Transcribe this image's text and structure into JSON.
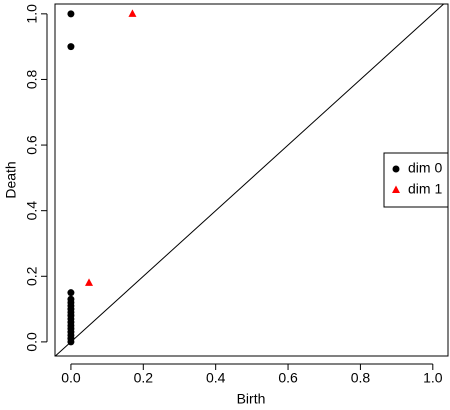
{
  "chart_data": {
    "type": "scatter",
    "x_label": "Birth",
    "y_label": "Death",
    "xlim": [
      -0.044,
      1.042
    ],
    "ylim": [
      -0.043,
      1.03
    ],
    "xticks": [
      {
        "value": 0,
        "label": "0.0"
      },
      {
        "value": 0.2,
        "label": "0.2"
      },
      {
        "value": 0.4,
        "label": "0.4"
      },
      {
        "value": 0.6,
        "label": "0.6"
      },
      {
        "value": 0.8,
        "label": "0.8"
      },
      {
        "value": 1,
        "label": "1.0"
      }
    ],
    "yticks": [
      {
        "value": 0,
        "label": "0.0"
      },
      {
        "value": 0.2,
        "label": "0.2"
      },
      {
        "value": 0.4,
        "label": "0.4"
      },
      {
        "value": 0.6,
        "label": "0.6"
      },
      {
        "value": 0.8,
        "label": "0.8"
      },
      {
        "value": 1,
        "label": "1.0"
      }
    ],
    "legend": "right",
    "series": [
      {
        "name": "dim 0",
        "color": "#000000",
        "marker": "circle",
        "x": [
          0,
          0,
          0,
          0,
          0,
          0,
          0,
          0,
          0,
          0,
          0,
          0,
          0,
          0,
          0,
          0,
          0
        ],
        "values": [
          1.0,
          0.9,
          0.0,
          0.01,
          0.02,
          0.03,
          0.04,
          0.05,
          0.06,
          0.07,
          0.08,
          0.09,
          0.1,
          0.11,
          0.12,
          0.13,
          0.15
        ]
      },
      {
        "name": "dim 1",
        "color": "#ff0000",
        "marker": "triangle",
        "x": [
          0.17,
          0.05
        ],
        "values": [
          1.0,
          0.18
        ]
      }
    ]
  }
}
